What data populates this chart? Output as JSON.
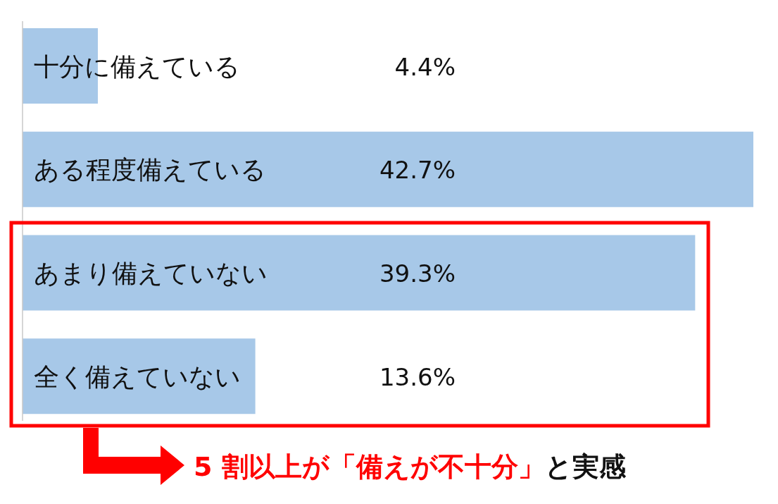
{
  "chart_data": {
    "type": "bar",
    "orientation": "horizontal",
    "value_labels": [
      "4.4%",
      "42.7%",
      "39.3%",
      "13.6%"
    ],
    "categories": [
      "十分に備えている",
      "ある程度備えている",
      "あまり備えていない",
      "全く備えていない"
    ],
    "values": [
      4.4,
      42.7,
      39.3,
      13.6
    ],
    "color": "#a7c8e8",
    "annotations": [
      "5 割以上が「備えが不十分」",
      "と実感"
    ]
  }
}
